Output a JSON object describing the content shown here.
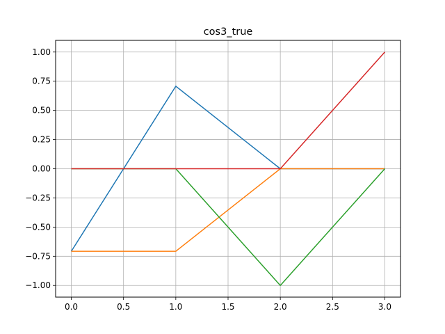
{
  "chart_data": {
    "type": "line",
    "title": "cos3_true",
    "xlabel": "",
    "ylabel": "",
    "xlim": [
      -0.15,
      3.15
    ],
    "ylim": [
      -1.1,
      1.1
    ],
    "grid": true,
    "x_ticks": [
      "0.0",
      "0.5",
      "1.0",
      "1.5",
      "2.0",
      "2.5",
      "3.0"
    ],
    "y_ticks": [
      "1.00",
      "0.75",
      "0.50",
      "0.25",
      "0.00",
      "−0.25",
      "−0.50",
      "−0.75",
      "−1.00"
    ],
    "x": [
      0,
      1,
      2,
      3
    ],
    "series": [
      {
        "color": "#1f77b4",
        "values": [
          -0.7071,
          0.7071,
          0.0,
          0.0
        ]
      },
      {
        "color": "#ff7f0e",
        "values": [
          -0.7071,
          -0.7071,
          0.0,
          0.0
        ]
      },
      {
        "color": "#2ca02c",
        "values": [
          0.0,
          0.0,
          -1.0,
          0.0
        ]
      },
      {
        "color": "#d62728",
        "values": [
          0.0,
          0.0,
          0.0,
          1.0
        ]
      }
    ]
  }
}
